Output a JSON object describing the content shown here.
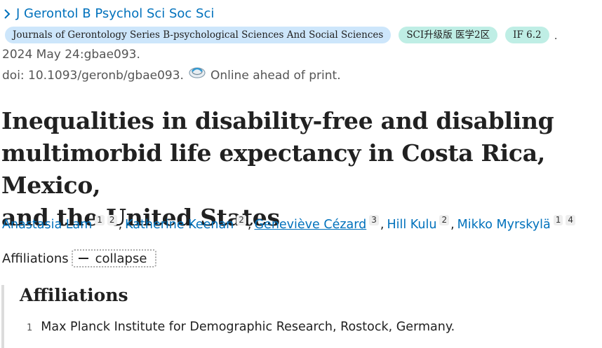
{
  "journal": {
    "abbrev": "J Gerontol B Psychol Sci Soc Sci",
    "full_name": "Journals of Gerontology Series B-psychological Sciences And Social Sciences",
    "sci_badge": "SCI升级版 医学2区",
    "impact_factor": "IF 6.2",
    "trailing": "."
  },
  "citation": {
    "date_line": "2024 May 24:gbae093.",
    "doi": "doi: 10.1093/geronb/gbae093.",
    "status": "Online ahead of print."
  },
  "article": {
    "title_line1": "Inequalities in disability-free and disabling",
    "title_line2": "multimorbid life expectancy in Costa Rica, Mexico,",
    "title_line3": "and the United States"
  },
  "authors": [
    {
      "name": "Anastasia Lam",
      "affs": [
        "1",
        "2"
      ],
      "sep": ","
    },
    {
      "name": "Katherine Keenan",
      "affs": [
        "2"
      ],
      "sep": ","
    },
    {
      "name": "Geneviève Cézard",
      "affs": [
        "3"
      ],
      "sep": ","
    },
    {
      "name": "Hill Kulu",
      "affs": [
        "2"
      ],
      "sep": ","
    },
    {
      "name": "Mikko Myrskylä",
      "affs": [
        "1",
        "4"
      ],
      "sep": ""
    }
  ],
  "affiliations_toggle": {
    "label": "Affiliations",
    "button": "collapse"
  },
  "affiliations": {
    "heading": "Affiliations",
    "items": [
      {
        "num": "1",
        "text": "Max Planck Institute for Demographic Research, Rostock, Germany."
      }
    ]
  },
  "colors": {
    "link": "#0071bc",
    "badge_blue": "#cde6fb",
    "badge_green": "#bfeee5"
  }
}
